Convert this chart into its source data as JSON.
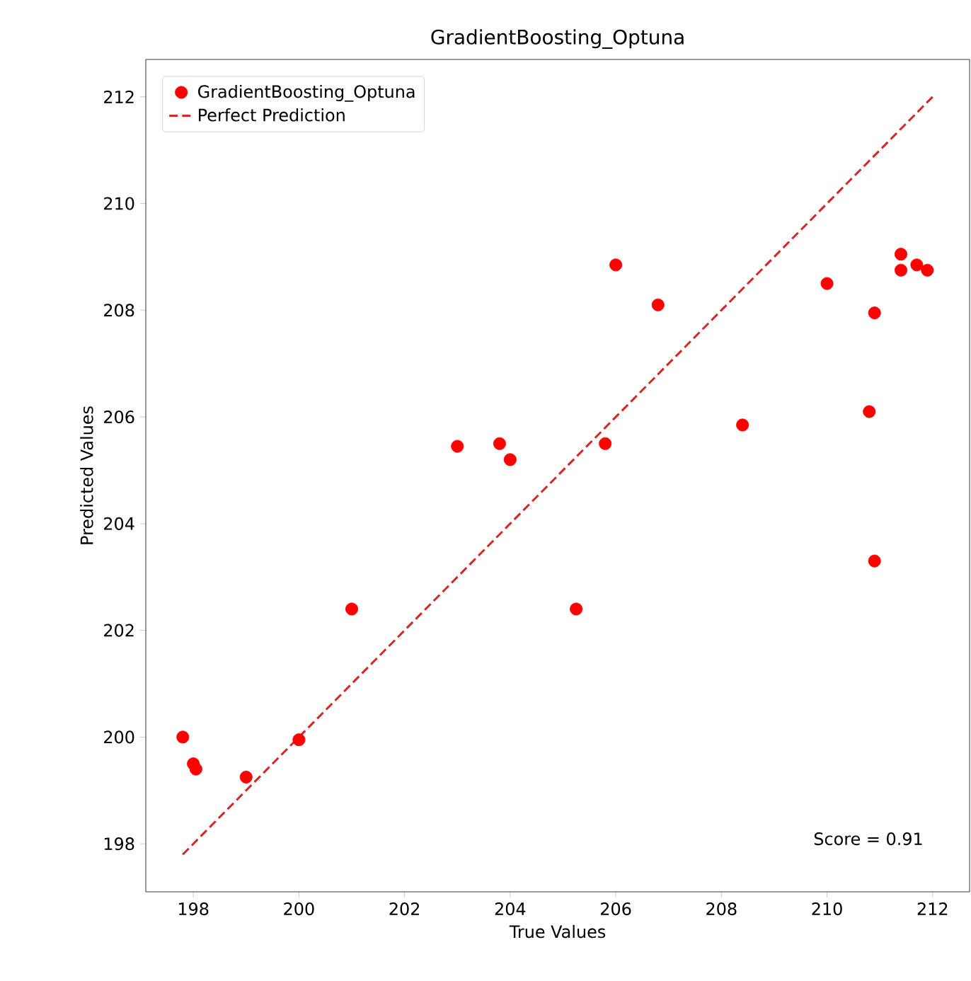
{
  "chart_data": {
    "type": "scatter",
    "title": "GradientBoosting_Optuna",
    "xlabel": "True Values",
    "ylabel": "Predicted Values",
    "xlim": [
      197.1,
      212.7
    ],
    "ylim": [
      197.1,
      212.7
    ],
    "xticks": [
      198,
      200,
      202,
      204,
      206,
      208,
      210,
      212
    ],
    "yticks": [
      198,
      200,
      202,
      204,
      206,
      208,
      210,
      212
    ],
    "grid": false,
    "legend": "top left",
    "annotations": [
      "Score = 0.91"
    ],
    "series": [
      {
        "name": "GradientBoosting_Optuna",
        "color": "#ff0000",
        "x": [
          197.8,
          198.0,
          198.05,
          199.0,
          200.0,
          201.0,
          205.25,
          206.0,
          206.8,
          203.0,
          203.8,
          204.0,
          205.8,
          208.4,
          210.0,
          210.9,
          210.8,
          210.9,
          211.4,
          211.4,
          211.7,
          211.9
        ],
        "values": [
          200.0,
          199.5,
          199.4,
          199.25,
          199.95,
          202.4,
          202.4,
          208.85,
          208.1,
          205.45,
          205.5,
          205.2,
          205.5,
          205.85,
          208.5,
          207.95,
          206.1,
          203.3,
          209.05,
          208.75,
          208.85,
          208.75
        ]
      },
      {
        "type": "line",
        "name": "Perfect Prediction",
        "color": "#d62728",
        "line_style": "dashed",
        "x": [
          197.8,
          212.0
        ],
        "values": [
          197.8,
          212.0
        ]
      }
    ]
  }
}
